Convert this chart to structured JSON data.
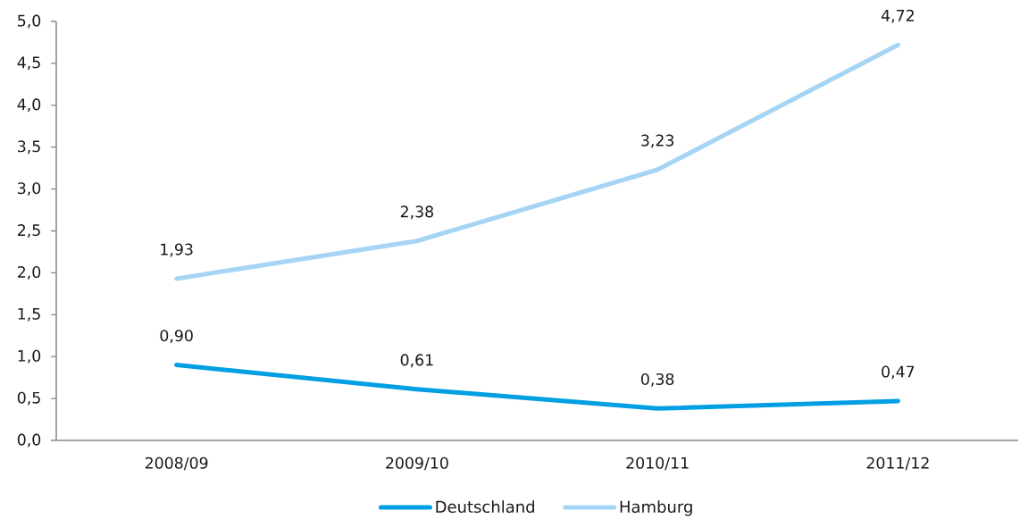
{
  "chart_data": {
    "type": "line",
    "categories": [
      "2008/09",
      "2009/10",
      "2010/11",
      "2011/12"
    ],
    "series": [
      {
        "name": "Deutschland",
        "color": "#009fe3",
        "values": [
          0.9,
          0.61,
          0.38,
          0.47
        ],
        "value_labels": [
          "0,90",
          "0,61",
          "0,38",
          "0,47"
        ]
      },
      {
        "name": "Hamburg",
        "color": "#a6d4f5",
        "values": [
          1.93,
          2.38,
          3.23,
          4.72
        ],
        "value_labels": [
          "1,93",
          "2,38",
          "3,23",
          "4,72"
        ]
      }
    ],
    "ylim": [
      0,
      5
    ],
    "yticks": [
      {
        "value": 0,
        "label": "0,0"
      },
      {
        "value": 0.5,
        "label": "0,5"
      },
      {
        "value": 1,
        "label": "1,0"
      },
      {
        "value": 1.5,
        "label": "1,5"
      },
      {
        "value": 2,
        "label": "2,0"
      },
      {
        "value": 2.5,
        "label": "2,5"
      },
      {
        "value": 3,
        "label": "3,0"
      },
      {
        "value": 3.5,
        "label": "3,5"
      },
      {
        "value": 4,
        "label": "4,0"
      },
      {
        "value": 4.5,
        "label": "4,5"
      },
      {
        "value": 5,
        "label": "5,0"
      }
    ],
    "grid": false,
    "legend": "bottom",
    "marker": "none",
    "line_style": "solid"
  }
}
